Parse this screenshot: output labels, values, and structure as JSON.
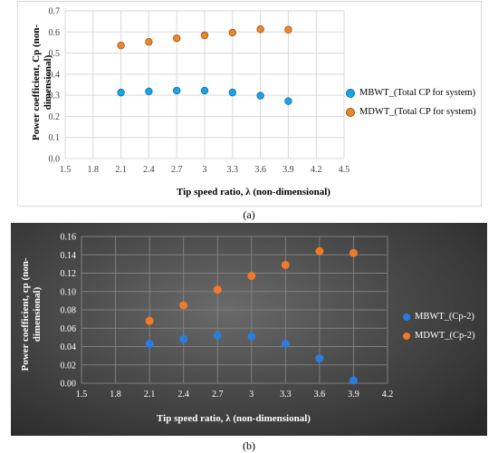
{
  "chart_data": [
    {
      "id": "a",
      "type": "scatter",
      "caption": "(a)",
      "xlabel": "Tip speed ratio, λ (non-dimensional)",
      "ylabel": "Power coefficient, Cp (non-dimensional)",
      "xlim": [
        1.5,
        4.5
      ],
      "ylim": [
        0,
        0.7
      ],
      "xticks": [
        "1.5",
        "1.8",
        "2.1",
        "2.4",
        "2.7",
        "3",
        "3.3",
        "3.6",
        "3.9",
        "4.2",
        "4.5"
      ],
      "yticks": [
        "0.0",
        "0.1",
        "0.2",
        "0.3",
        "0.4",
        "0.5",
        "0.6",
        "0.7"
      ],
      "grid": true,
      "legend_position": "right",
      "series": [
        {
          "name": "MBWT_(Total CP for system)",
          "color": "#1aa3e8",
          "x": [
            2.1,
            2.4,
            2.7,
            3.0,
            3.3,
            3.6,
            3.9
          ],
          "y": [
            0.313,
            0.318,
            0.322,
            0.322,
            0.313,
            0.298,
            0.272
          ]
        },
        {
          "name": "MDWT_(Total CP for system)",
          "color": "#e8892b",
          "x": [
            2.1,
            2.4,
            2.7,
            3.0,
            3.3,
            3.6,
            3.9
          ],
          "y": [
            0.536,
            0.553,
            0.57,
            0.584,
            0.597,
            0.613,
            0.611
          ]
        }
      ]
    },
    {
      "id": "b",
      "type": "scatter",
      "caption": "(b)",
      "xlabel": "Tip speed ratio, λ (non-dimensional)",
      "ylabel": "Power coefficient, cp (non-dimensional)",
      "xlim": [
        1.5,
        4.2
      ],
      "ylim": [
        0,
        0.16
      ],
      "xticks": [
        "1.5",
        "1.8",
        "2.1",
        "2.4",
        "2.7",
        "3",
        "3.3",
        "3.6",
        "3.9",
        "4.2"
      ],
      "yticks": [
        "0.00",
        "0.02",
        "0.04",
        "0.06",
        "0.08",
        "0.10",
        "0.12",
        "0.14",
        "0.16"
      ],
      "grid": true,
      "legend_position": "right",
      "series": [
        {
          "name": "MBWT_(Cp-2)",
          "color": "#2a7de0",
          "x": [
            2.1,
            2.4,
            2.7,
            3.0,
            3.3,
            3.6,
            3.9
          ],
          "y": [
            0.043,
            0.048,
            0.052,
            0.051,
            0.043,
            0.027,
            0.003
          ]
        },
        {
          "name": "MDWT_(Cp-2)",
          "color": "#f07a2a",
          "x": [
            2.1,
            2.4,
            2.7,
            3.0,
            3.3,
            3.6,
            3.9
          ],
          "y": [
            0.068,
            0.085,
            0.102,
            0.117,
            0.129,
            0.144,
            0.142
          ]
        }
      ]
    }
  ]
}
